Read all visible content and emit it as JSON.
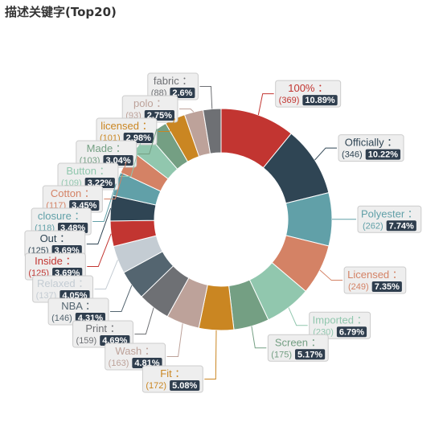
{
  "title": "描述关键字(Top20)",
  "chart_data": {
    "type": "pie",
    "donut": true,
    "title": "描述关键字(Top20)",
    "label_colon": "：",
    "slices": [
      {
        "name": "100%",
        "value": 369,
        "percent": "10.89%",
        "color": "#c23531"
      },
      {
        "name": "Officially",
        "value": 346,
        "percent": "10.22%",
        "color": "#2f4554"
      },
      {
        "name": "Polyester",
        "value": 262,
        "percent": "7.74%",
        "color": "#61a0a8"
      },
      {
        "name": "Licensed",
        "value": 249,
        "percent": "7.35%",
        "color": "#d48265"
      },
      {
        "name": "Imported",
        "value": 230,
        "percent": "6.79%",
        "color": "#91c7ae"
      },
      {
        "name": "Screen",
        "value": 175,
        "percent": "5.17%",
        "color": "#749f83"
      },
      {
        "name": "Fit",
        "value": 172,
        "percent": "5.08%",
        "color": "#ca8622"
      },
      {
        "name": "Wash",
        "value": 163,
        "percent": "4.81%",
        "color": "#bda29a"
      },
      {
        "name": "Print",
        "value": 159,
        "percent": "4.69%",
        "color": "#6e7074"
      },
      {
        "name": "NBA",
        "value": 146,
        "percent": "4.31%",
        "color": "#546570"
      },
      {
        "name": "Relaxed",
        "value": 137,
        "percent": "4.05%",
        "color": "#c4ccd3"
      },
      {
        "name": "Inside",
        "value": 125,
        "percent": "3.69%",
        "color": "#c23531"
      },
      {
        "name": "Out",
        "value": 125,
        "percent": "3.69%",
        "color": "#2f4554"
      },
      {
        "name": "closure",
        "value": 118,
        "percent": "3.48%",
        "color": "#61a0a8"
      },
      {
        "name": "Cotton",
        "value": 117,
        "percent": "3.45%",
        "color": "#d48265"
      },
      {
        "name": "Button",
        "value": 109,
        "percent": "3.22%",
        "color": "#91c7ae"
      },
      {
        "name": "Made",
        "value": 103,
        "percent": "3.04%",
        "color": "#749f83"
      },
      {
        "name": "licensed",
        "value": 101,
        "percent": "2.98%",
        "color": "#ca8622"
      },
      {
        "name": "polo",
        "value": 93,
        "percent": "2.75%",
        "color": "#bda29a"
      },
      {
        "name": "fabric",
        "value": 88,
        "percent": "2.6%",
        "color": "#6e7074"
      }
    ]
  }
}
